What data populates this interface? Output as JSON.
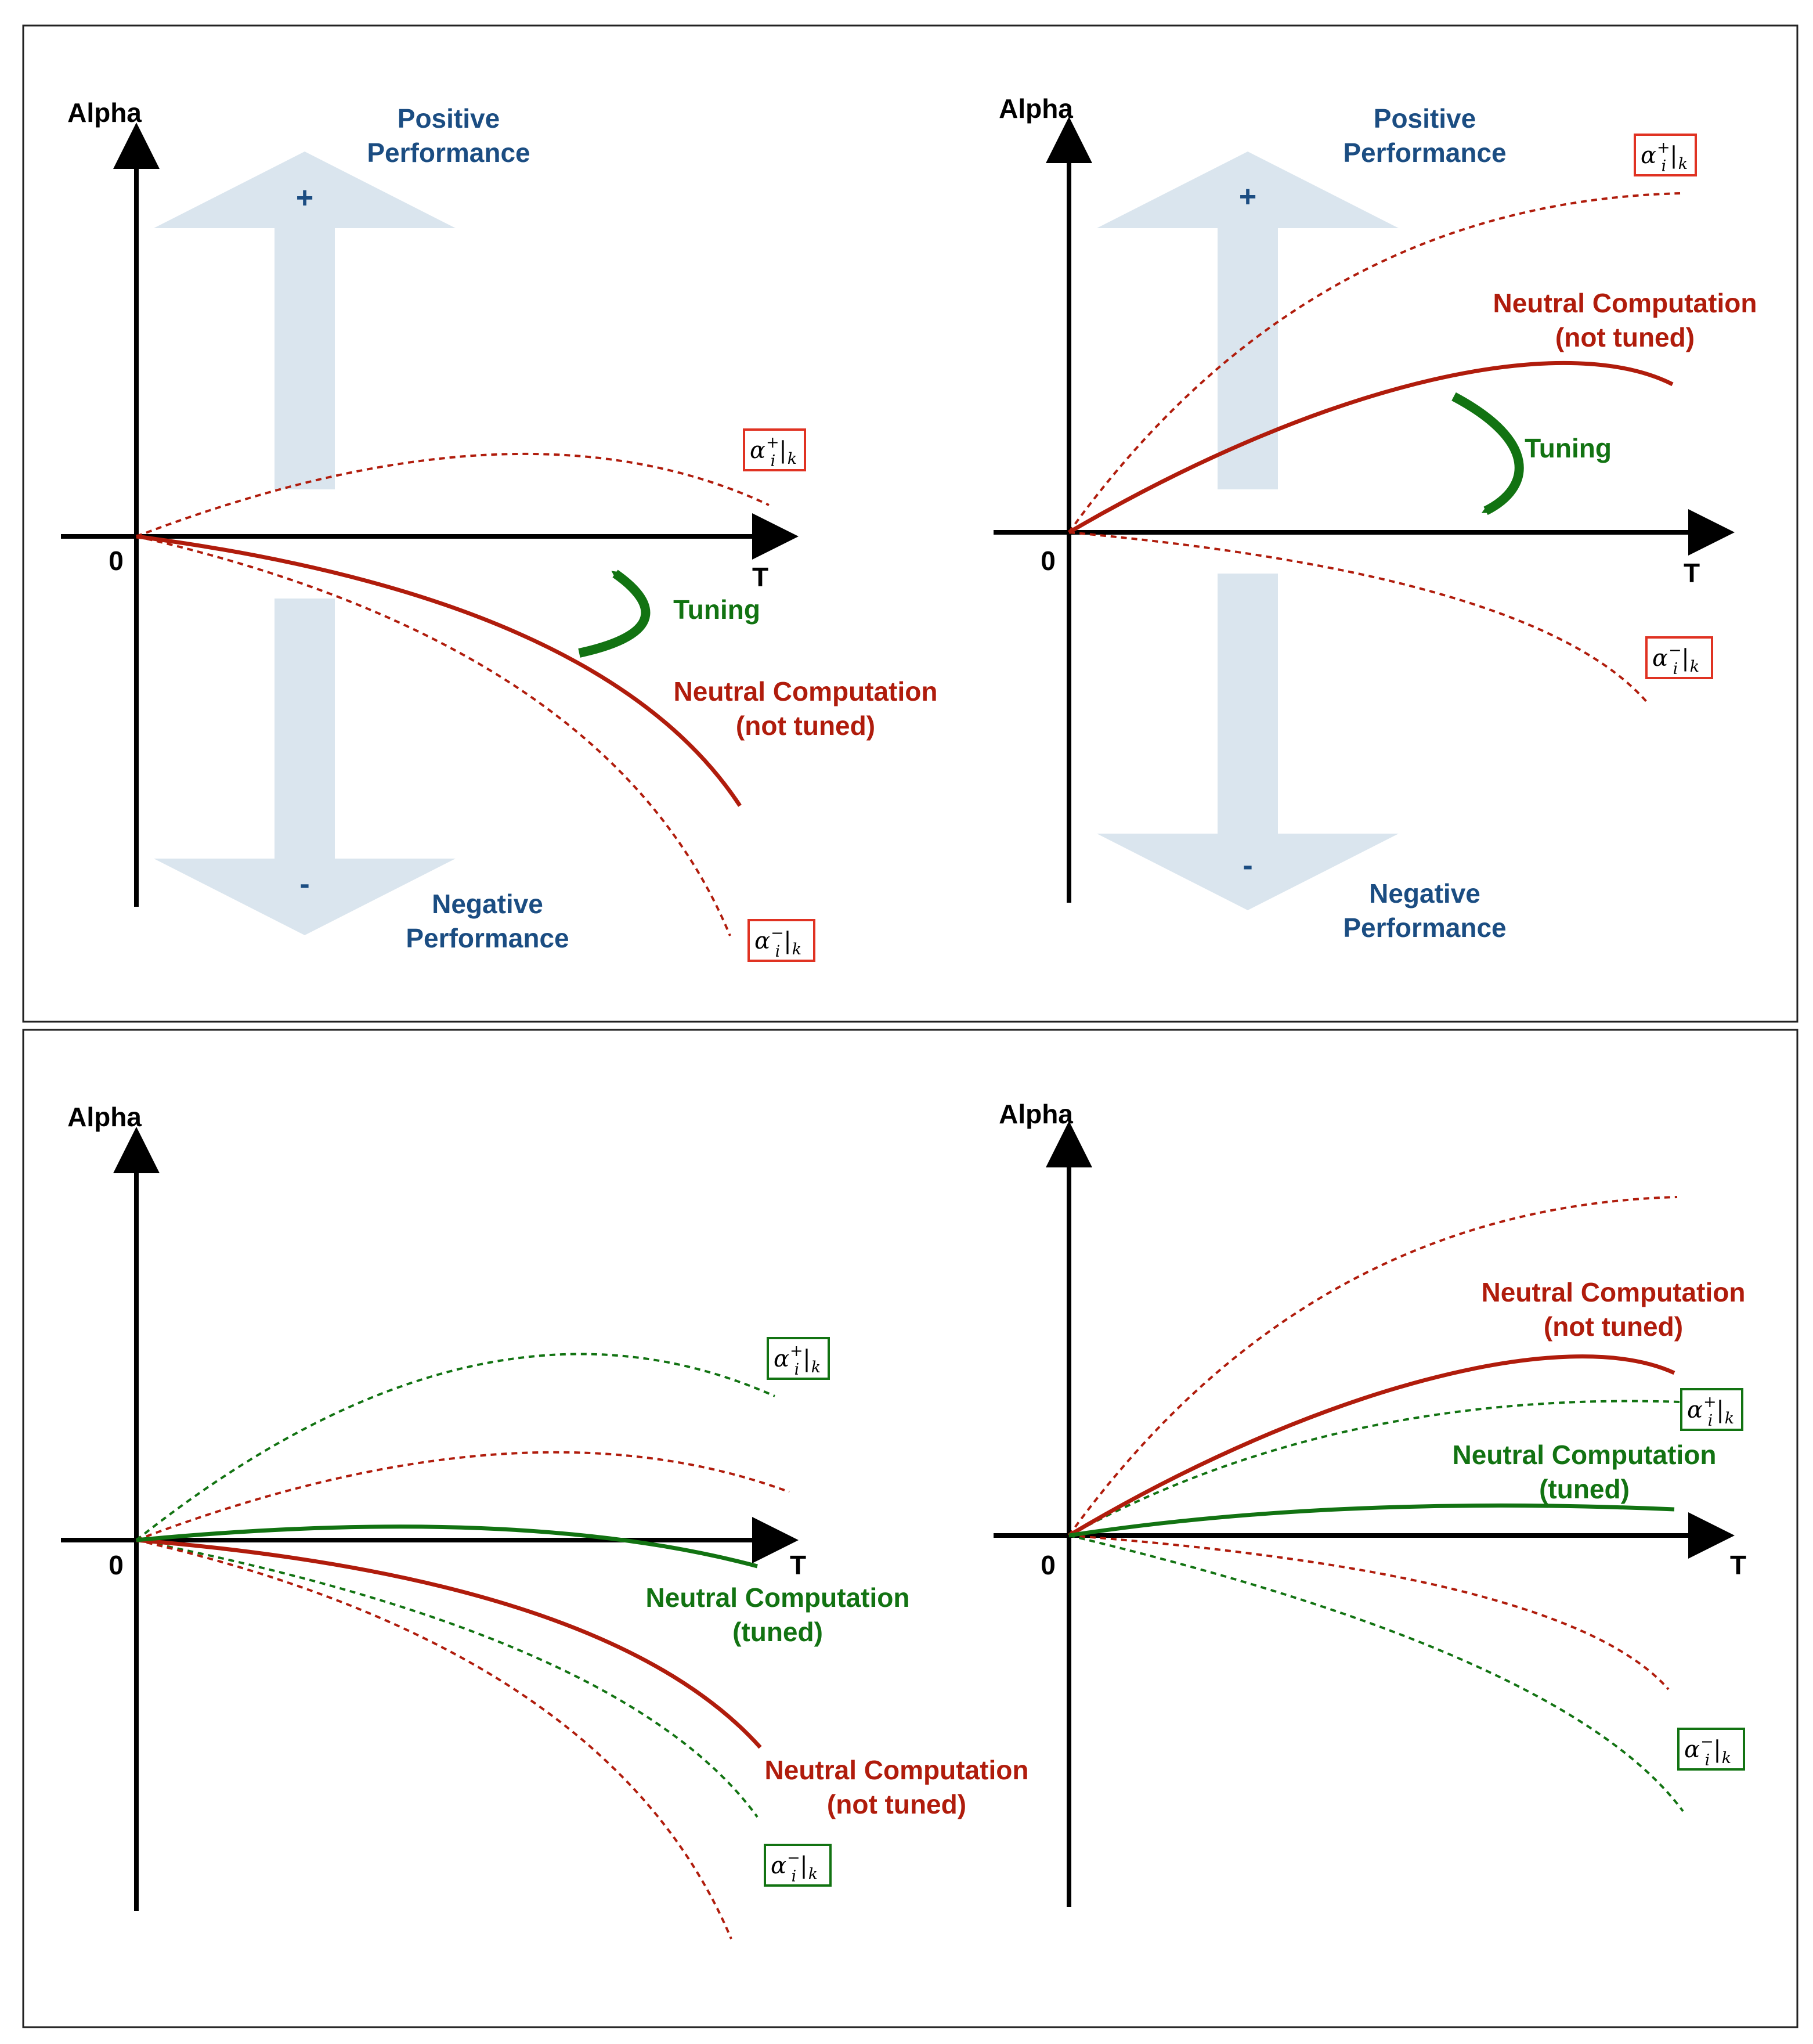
{
  "colors": {
    "red": "#b01c0c",
    "green": "#127312",
    "blue_text": "#1b4d82",
    "arrow_fill": "#dae5ee",
    "axis": "#000000"
  },
  "axes": {
    "y_label": "Alpha",
    "x_label": "T",
    "origin_label": "0"
  },
  "performance": {
    "positive_line1": "Positive",
    "positive_line2": "Performance",
    "negative_line1": "Negative",
    "negative_line2": "Performance",
    "plus": "+",
    "minus": "-"
  },
  "tuning_label": "Tuning",
  "neutral_not_tuned": {
    "line1": "Neutral Computation",
    "line2": "(not tuned)"
  },
  "neutral_tuned": {
    "line1": "Neutral Computation",
    "line2": "(tuned)"
  },
  "bound_upper": {
    "base": "α",
    "sub": "i",
    "sup": "+",
    "bar": "|",
    "k": "k"
  },
  "bound_lower": {
    "base": "α",
    "sub": "i",
    "sup": "−",
    "bar": "|",
    "k": "k"
  }
}
